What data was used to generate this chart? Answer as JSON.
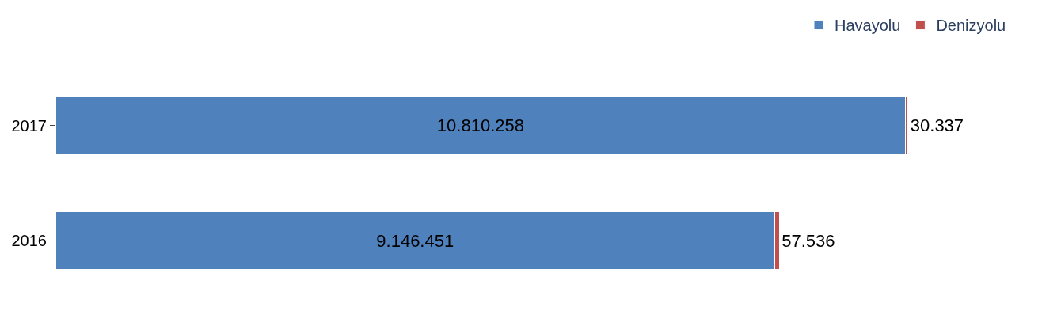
{
  "chart_data": {
    "type": "bar",
    "orientation": "horizontal",
    "stacked": true,
    "categories": [
      "2017",
      "2016"
    ],
    "series": [
      {
        "name": "Havayolu",
        "color": "#4f81bd",
        "values": [
          10810258,
          9146451
        ],
        "value_labels": [
          "10.810.258",
          "9.146.451"
        ]
      },
      {
        "name": "Denizyolu",
        "color": "#c0504d",
        "values": [
          30337,
          57536
        ],
        "value_labels": [
          "30.337",
          "57.536"
        ]
      }
    ],
    "legend": "top right"
  }
}
